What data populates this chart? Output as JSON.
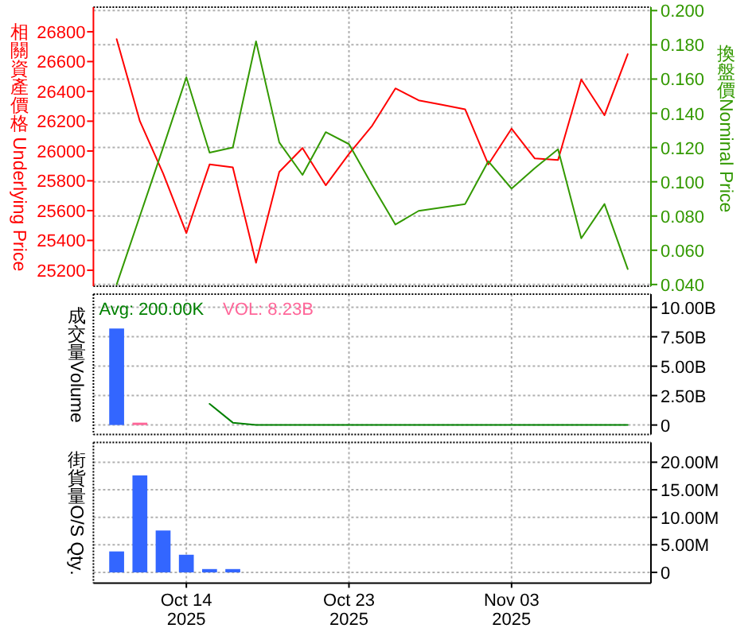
{
  "chart_data": [
    {
      "type": "line",
      "categories": [
        null,
        null,
        null,
        null,
        null,
        null,
        null,
        null,
        null,
        null,
        null,
        null,
        null,
        null,
        null,
        null,
        null,
        null,
        null,
        null,
        null,
        null,
        null
      ],
      "ylabel": "相關資產價格 Underlying Price",
      "y2label": "換盤價Nominal Price",
      "ylim": [
        25093,
        26965
      ],
      "yticks": [
        25200,
        25400,
        25600,
        25800,
        26000,
        26200,
        26400,
        26600,
        26800
      ],
      "y2lim": [
        0.039,
        0.202
      ],
      "y2ticks": [
        {
          "value": 0.04,
          "label": "0.040"
        },
        {
          "value": 0.06,
          "label": "0.060"
        },
        {
          "value": 0.08,
          "label": "0.080"
        },
        {
          "value": 0.1,
          "label": "0.100"
        },
        {
          "value": 0.12,
          "label": "0.120"
        },
        {
          "value": 0.14,
          "label": "0.140"
        },
        {
          "value": 0.16,
          "label": "0.160"
        },
        {
          "value": 0.18,
          "label": "0.180"
        },
        {
          "value": 0.2,
          "label": "0.200"
        }
      ],
      "grid": true,
      "tick_labels": "y",
      "series": [
        {
          "color": "#ff0000",
          "values": [
            26750,
            26200,
            25850,
            25450,
            25910,
            25890,
            25250,
            25860,
            26020,
            25770,
            25980,
            26170,
            26420,
            26340,
            26310,
            26280,
            25910,
            26150,
            25950,
            25940,
            26480,
            26240,
            26650
          ]
        },
        {
          "color": "#339900",
          "axis": "y2",
          "values": [
            0.04,
            0.08,
            0.12,
            0.161,
            0.117,
            0.12,
            0.182,
            0.123,
            0.104,
            0.129,
            0.122,
            0.098,
            0.075,
            0.083,
            0.085,
            0.087,
            0.112,
            0.096,
            0.108,
            0.119,
            0.067,
            0.087,
            0.049
          ]
        }
      ]
    },
    {
      "type": "bar",
      "categories": [
        null,
        null,
        null,
        null,
        null,
        null,
        null,
        null,
        null,
        null,
        null,
        null,
        null,
        null,
        null,
        null,
        null,
        null,
        null,
        null,
        null,
        null,
        null
      ],
      "ylabel": "成交量Volume",
      "ylim": [
        -0.81,
        11.12
      ],
      "yticks": [
        0,
        {
          "value": 2.5,
          "label": "2.50B"
        },
        {
          "value": 5,
          "label": "5.00B"
        },
        {
          "value": 7.5,
          "label": "7.50B"
        },
        {
          "value": 10,
          "label": "10.00B"
        }
      ],
      "grid": true,
      "tick_labels": "y",
      "legend": "top left",
      "series": [
        {
          "name": "Avg: 200.00K",
          "type": "line",
          "color": "#008000",
          "values": [
            null,
            null,
            null,
            null,
            1.8,
            0.2,
            0,
            0,
            0,
            0,
            0,
            0,
            0,
            0,
            0,
            0,
            0,
            0,
            0,
            0,
            0,
            0,
            0
          ]
        },
        {
          "color": "#3366ff",
          "values": [
            8.2,
            null,
            null,
            null,
            null,
            null,
            null,
            null,
            null,
            null,
            null,
            null,
            null,
            null,
            null,
            null,
            null,
            null,
            null,
            null,
            null,
            null,
            null
          ]
        },
        {
          "name": "VOL: 8.23B",
          "color": "#ff6699",
          "values": [
            null,
            0.2,
            null,
            null,
            null,
            null,
            null,
            null,
            null,
            null,
            null,
            null,
            null,
            null,
            null,
            null,
            null,
            null,
            null,
            null,
            null,
            null,
            null
          ]
        }
      ]
    },
    {
      "type": "bar",
      "categories": [
        null,
        null,
        null,
        "Oct 14\n2025",
        null,
        null,
        null,
        null,
        null,
        null,
        "Oct 23\n2025",
        null,
        null,
        null,
        null,
        null,
        null,
        "Nov 03\n2025",
        null,
        null,
        null,
        null,
        null
      ],
      "ylabel": "街貨量O/S Qty.",
      "ylim": [
        -1.94,
        23.58
      ],
      "yticks": [
        0,
        {
          "value": 5,
          "label": "5.00M"
        },
        {
          "value": 10,
          "label": "10.00M"
        },
        {
          "value": 15,
          "label": "15.00M"
        },
        {
          "value": 20,
          "label": "20.00M"
        }
      ],
      "grid": true,
      "series": [
        {
          "color": "#3366ff",
          "values": [
            3.8,
            17.6,
            7.6,
            3.2,
            0.6,
            0.6,
            null,
            null,
            null,
            null,
            null,
            null,
            null,
            null,
            null,
            null,
            null,
            null,
            null,
            null,
            null,
            null,
            null
          ]
        }
      ]
    }
  ]
}
